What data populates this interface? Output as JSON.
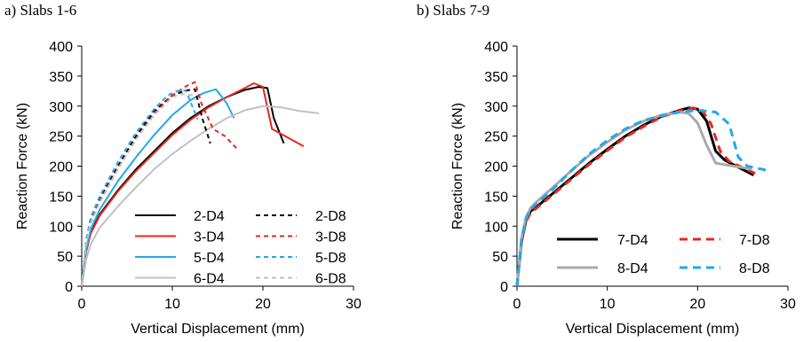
{
  "chart_data": [
    {
      "type": "line",
      "panel_title": "a) Slabs 1-6",
      "xlabel": "Vertical Displacement (mm)",
      "ylabel": "Reaction Force (kN)",
      "xlim": [
        0,
        30
      ],
      "ylim": [
        0,
        400
      ],
      "xticks": [
        "0",
        "10",
        "20",
        "30"
      ],
      "yticks": [
        "0",
        "50",
        "100",
        "150",
        "200",
        "250",
        "300",
        "350",
        "400"
      ],
      "grid": false,
      "legend": {
        "placement": "bottom-right",
        "columns": 2
      },
      "series": [
        {
          "name": "2-D4",
          "color": "#000000",
          "dash": "solid",
          "width": 2,
          "x": [
            0,
            0.5,
            1,
            2,
            4,
            6,
            8,
            10,
            12,
            14,
            16,
            18,
            19.5,
            20.5,
            21.2,
            22.3
          ],
          "y": [
            0,
            60,
            90,
            120,
            160,
            195,
            225,
            255,
            280,
            300,
            315,
            327,
            332,
            330,
            280,
            238
          ]
        },
        {
          "name": "3-D4",
          "color": "#e8261f",
          "dash": "solid",
          "width": 2,
          "x": [
            0,
            0.5,
            1,
            2,
            4,
            6,
            8,
            10,
            12,
            14,
            16,
            18,
            19,
            20,
            21,
            24.5
          ],
          "y": [
            0,
            58,
            88,
            118,
            158,
            192,
            222,
            252,
            277,
            298,
            315,
            330,
            338,
            332,
            262,
            233
          ]
        },
        {
          "name": "5-D4",
          "color": "#22a8e8",
          "dash": "solid",
          "width": 2,
          "x": [
            0,
            0.5,
            1,
            2,
            4,
            6,
            8,
            10,
            12,
            13.5,
            14.8,
            16,
            16.8
          ],
          "y": [
            0,
            62,
            95,
            128,
            175,
            215,
            252,
            285,
            310,
            322,
            328,
            305,
            280
          ]
        },
        {
          "name": "6-D4",
          "color": "#c0c0c0",
          "dash": "solid",
          "width": 2,
          "x": [
            0,
            0.5,
            1,
            2,
            4,
            6,
            8,
            10,
            12,
            14,
            16,
            18,
            20,
            22,
            24,
            26.2
          ],
          "y": [
            0,
            45,
            70,
            98,
            133,
            165,
            195,
            220,
            242,
            262,
            280,
            293,
            300,
            298,
            292,
            288
          ]
        },
        {
          "name": "2-D8",
          "color": "#000000",
          "dash": "dashed",
          "width": 2,
          "x": [
            0,
            0.5,
            1,
            2,
            4,
            6,
            8,
            10,
            11.5,
            12.5,
            13.3,
            14.2
          ],
          "y": [
            0,
            75,
            110,
            145,
            200,
            250,
            292,
            318,
            326,
            328,
            280,
            238
          ]
        },
        {
          "name": "3-D8",
          "color": "#e8261f",
          "dash": "dashed",
          "width": 2,
          "x": [
            0,
            0.5,
            1,
            2,
            4,
            6,
            8,
            10,
            11.5,
            12.5,
            13.2,
            14.5,
            15.8,
            17.2
          ],
          "y": [
            0,
            73,
            108,
            142,
            196,
            245,
            287,
            318,
            333,
            340,
            305,
            262,
            250,
            228
          ]
        },
        {
          "name": "5-D8",
          "color": "#22a8e8",
          "dash": "dashed",
          "width": 2,
          "x": [
            0,
            0.5,
            1,
            2,
            4,
            6,
            8,
            9.5,
            10.5,
            11.5,
            12.2,
            12.8
          ],
          "y": [
            0,
            78,
            115,
            150,
            207,
            256,
            295,
            318,
            325,
            326,
            300,
            278
          ]
        },
        {
          "name": "6-D8",
          "color": "#c0c0c0",
          "dash": "dashed",
          "width": 2,
          "x": [
            0,
            0.5,
            1,
            2,
            4,
            6,
            8,
            10,
            11,
            12.5
          ],
          "y": [
            0,
            70,
            105,
            140,
            195,
            245,
            285,
            315,
            320,
            318
          ]
        }
      ]
    },
    {
      "type": "line",
      "panel_title": "b) Slabs 7-9",
      "xlabel": "Vertical Displacement (mm)",
      "ylabel": "Reaction Force (kN)",
      "xlim": [
        0,
        30
      ],
      "ylim": [
        0,
        400
      ],
      "xticks": [
        "0",
        "10",
        "20",
        "30"
      ],
      "yticks": [
        "0",
        "50",
        "100",
        "150",
        "200",
        "250",
        "300",
        "350",
        "400"
      ],
      "grid": false,
      "legend": {
        "placement": "bottom-center",
        "columns": 2
      },
      "series": [
        {
          "name": "7-D4",
          "color": "#000000",
          "dash": "solid",
          "width": 3,
          "x": [
            0,
            0.5,
            1,
            1.5,
            2,
            4,
            6,
            8,
            10,
            12,
            14,
            16,
            18,
            19,
            20,
            21,
            22,
            23,
            26.2
          ],
          "y": [
            0,
            75,
            110,
            125,
            130,
            155,
            180,
            205,
            228,
            250,
            268,
            283,
            293,
            297,
            295,
            275,
            225,
            210,
            185
          ]
        },
        {
          "name": "7-D8",
          "color": "#e8261f",
          "dash": "dashed",
          "width": 3,
          "x": [
            0,
            0.5,
            1,
            1.5,
            2,
            4,
            6,
            8,
            10,
            12,
            14,
            16,
            18,
            19.5,
            20.5,
            21.5,
            22.5,
            23.5,
            26.5
          ],
          "y": [
            0,
            72,
            108,
            122,
            128,
            153,
            178,
            203,
            226,
            248,
            266,
            282,
            292,
            297,
            293,
            270,
            225,
            208,
            187
          ]
        },
        {
          "name": "8-D4",
          "color": "#aaaaaa",
          "dash": "solid",
          "width": 3,
          "x": [
            0,
            0.5,
            1,
            1.5,
            2,
            4,
            6,
            8,
            10,
            12,
            14,
            16,
            18,
            19,
            20,
            21,
            22,
            26
          ],
          "y": [
            0,
            80,
            115,
            130,
            138,
            165,
            192,
            218,
            240,
            260,
            275,
            285,
            290,
            288,
            272,
            235,
            205,
            195
          ]
        },
        {
          "name": "8-D8",
          "color": "#22a8e8",
          "dash": "dashed",
          "width": 3,
          "x": [
            0,
            0.5,
            1,
            1.5,
            2,
            4,
            6,
            8,
            10,
            12,
            14,
            16,
            18,
            20,
            22,
            23.5,
            24.5,
            25.5,
            28
          ],
          "y": [
            0,
            78,
            112,
            128,
            135,
            162,
            192,
            220,
            243,
            262,
            276,
            284,
            290,
            293,
            290,
            270,
            215,
            200,
            192
          ]
        }
      ]
    }
  ]
}
